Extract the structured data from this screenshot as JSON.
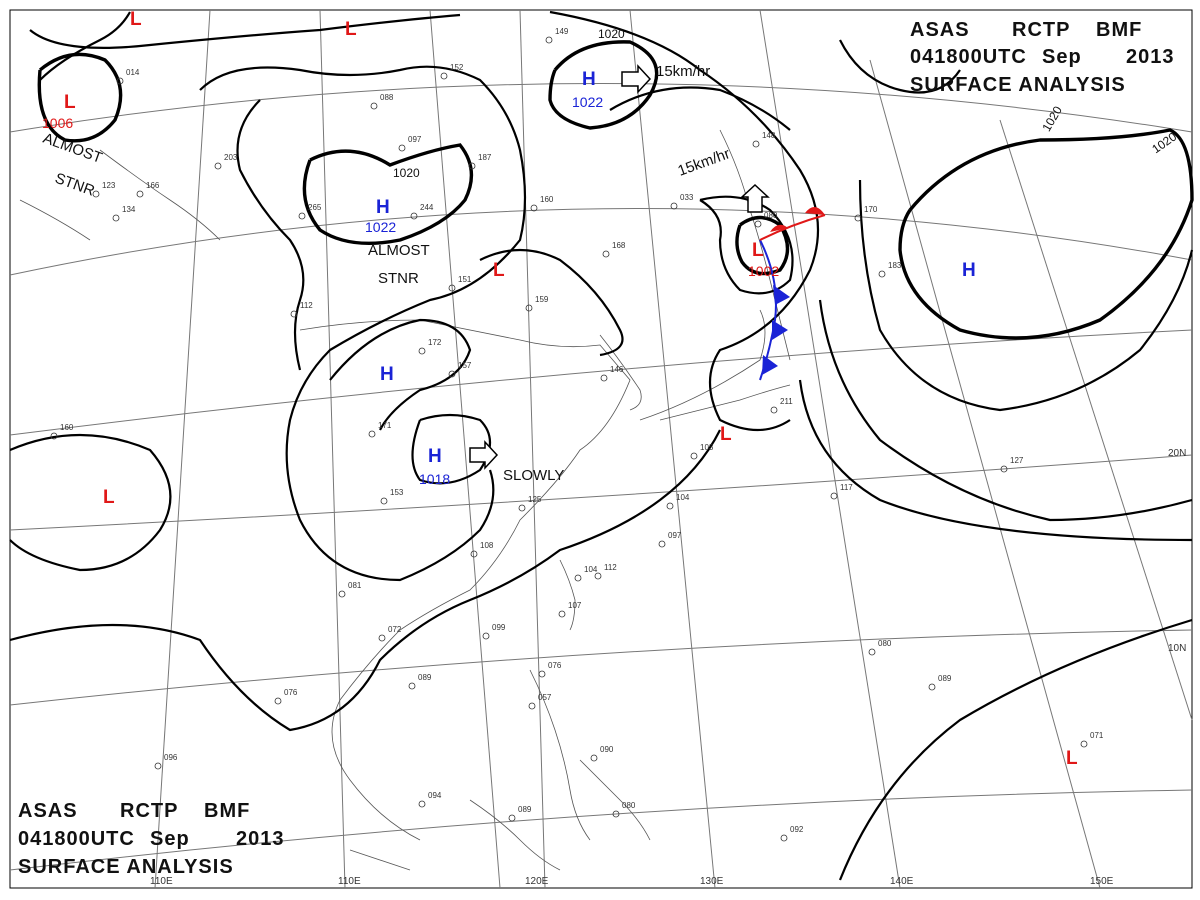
{
  "header": {
    "line1": [
      "ASAS",
      "RCTP",
      "BMF"
    ],
    "line2": [
      "041800UTC",
      "Sep",
      "2013"
    ],
    "line3": "SURFACE ANALYSIS"
  },
  "footer": {
    "line1": [
      "ASAS",
      "RCTP",
      "BMF"
    ],
    "line2": [
      "041800UTC",
      "Sep",
      "2013"
    ],
    "line3": "SURFACE ANALYSIS"
  },
  "axes": {
    "longitudes": [
      "110E",
      "120E",
      "130E",
      "140E",
      "150E"
    ],
    "latitudes": [
      "20N",
      "10N"
    ]
  },
  "isobar_labels": [
    "1020",
    "1020",
    "1020",
    "1020"
  ],
  "systems": [
    {
      "type": "L",
      "value": "1006",
      "note": "ALMOST STNR"
    },
    {
      "type": "H",
      "value": "1022",
      "note": "15km/hr"
    },
    {
      "type": "H",
      "value": "1022",
      "note": "ALMOST STNR"
    },
    {
      "type": "L",
      "value": "",
      "note": ""
    },
    {
      "type": "H",
      "value": "",
      "note": ""
    },
    {
      "type": "H",
      "value": "1018",
      "note": "SLOWLY"
    },
    {
      "type": "L",
      "value": "1002",
      "note": "15km/hr"
    },
    {
      "type": "H",
      "value": "",
      "note": ""
    },
    {
      "type": "L",
      "value": "",
      "note": ""
    },
    {
      "type": "L",
      "value": "",
      "note": ""
    },
    {
      "type": "L",
      "value": "",
      "note": ""
    },
    {
      "type": "L",
      "value": "",
      "note": ""
    },
    {
      "type": "L",
      "value": "",
      "note": ""
    }
  ],
  "station_samples": [
    "149",
    "152",
    "187",
    "160",
    "168",
    "244",
    "265",
    "151",
    "159",
    "172",
    "157",
    "146",
    "171",
    "153",
    "125",
    "108",
    "104",
    "112",
    "107",
    "099",
    "081",
    "072",
    "089",
    "076",
    "096",
    "094",
    "089",
    "080",
    "090",
    "057",
    "076",
    "097",
    "104",
    "117",
    "127",
    "080",
    "089",
    "071",
    "092",
    "080",
    "033",
    "148",
    "170",
    "183",
    "211",
    "103",
    "112",
    "134",
    "123",
    "014",
    "088",
    "097",
    "203",
    "166",
    "160"
  ],
  "colors": {
    "high": "#1a23d6",
    "low": "#e01818",
    "isobar": "#000000",
    "grid": "#777777",
    "coast": "#555555"
  }
}
